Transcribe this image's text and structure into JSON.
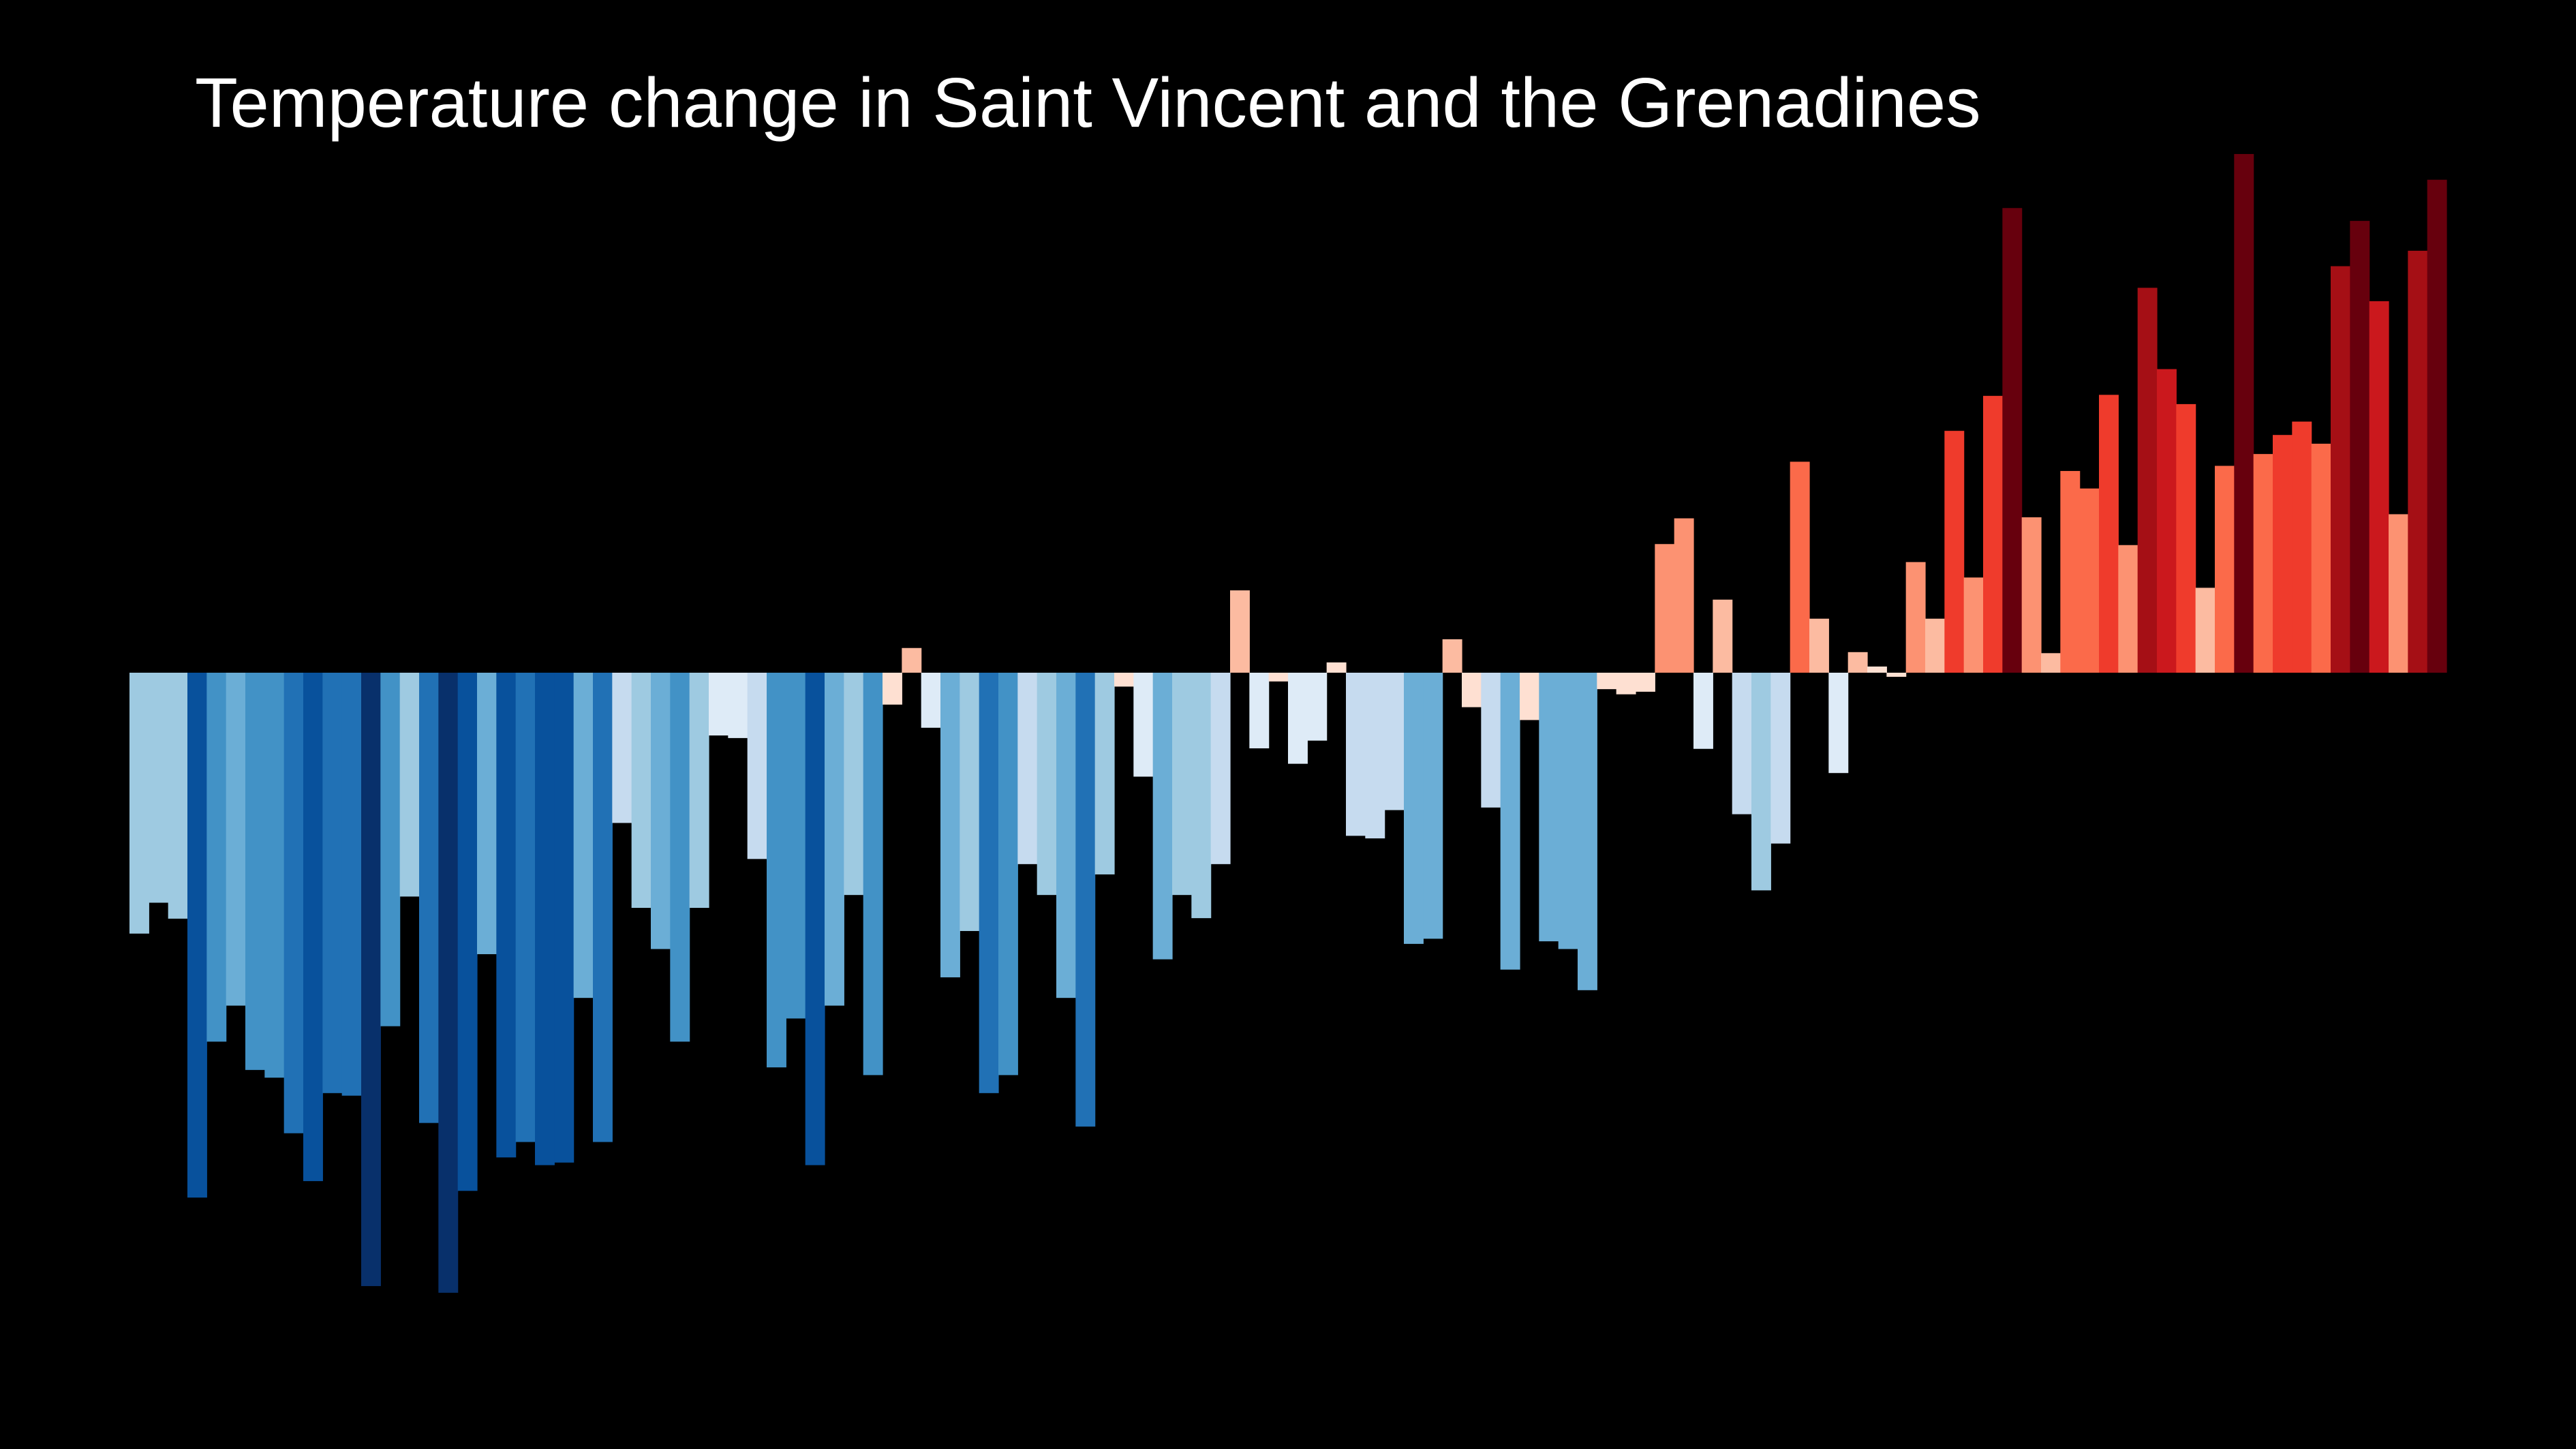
{
  "title": "Temperature change in Saint Vincent and the Grenadines",
  "colors": {
    "background": "#000000",
    "title_text": "#ffffff",
    "scale": [
      "#08306b",
      "#08519c",
      "#2171b5",
      "#4292c6",
      "#6baed6",
      "#9ecae1",
      "#c6dbef",
      "#deebf7",
      "#fee0d2",
      "#fcbba1",
      "#fc9272",
      "#fb6a4a",
      "#ef3b2c",
      "#cb181d",
      "#a50f15",
      "#67000d"
    ]
  },
  "chart_data": {
    "type": "bar",
    "xlabel": "",
    "ylabel": "",
    "ylim": [
      -1.2,
      1.0
    ],
    "grid": false,
    "legend": "none",
    "values": [
      -0.507,
      -0.447,
      -0.478,
      -1.02,
      -0.717,
      -0.647,
      -0.772,
      -0.787,
      -0.895,
      -0.988,
      -0.817,
      -0.822,
      -1.192,
      -0.687,
      -0.435,
      -0.875,
      -1.205,
      -1.007,
      -0.547,
      -0.942,
      -0.912,
      -0.957,
      -0.952,
      -0.632,
      -0.912,
      -0.292,
      -0.457,
      -0.537,
      -0.717,
      -0.457,
      -0.122,
      -0.127,
      -0.362,
      -0.767,
      -0.672,
      -0.957,
      -0.647,
      -0.432,
      -0.782,
      -0.062,
      0.048,
      -0.107,
      -0.592,
      -0.502,
      -0.817,
      -0.782,
      -0.372,
      -0.432,
      -0.632,
      -0.882,
      -0.392,
      -0.027,
      -0.202,
      -0.557,
      -0.432,
      -0.477,
      -0.372,
      0.16,
      -0.147,
      -0.017,
      -0.177,
      -0.132,
      0.02,
      -0.317,
      -0.322,
      -0.267,
      -0.527,
      -0.517,
      0.065,
      -0.067,
      -0.262,
      -0.577,
      -0.092,
      -0.522,
      -0.537,
      -0.617,
      -0.032,
      -0.042,
      -0.037,
      0.25,
      0.3,
      -0.148,
      0.142,
      -0.275,
      -0.423,
      -0.332,
      0.41,
      0.105,
      -0.195,
      0.04,
      0.012,
      -0.008,
      0.215,
      0.105,
      0.47,
      0.185,
      0.538,
      0.903,
      0.302,
      0.038,
      0.392,
      0.358,
      0.54,
      0.248,
      0.748,
      0.59,
      0.522,
      0.165,
      0.402,
      1.008,
      0.425,
      0.462,
      0.488,
      0.445,
      0.79,
      0.878,
      0.722,
      0.308,
      0.82,
      0.958
    ]
  }
}
